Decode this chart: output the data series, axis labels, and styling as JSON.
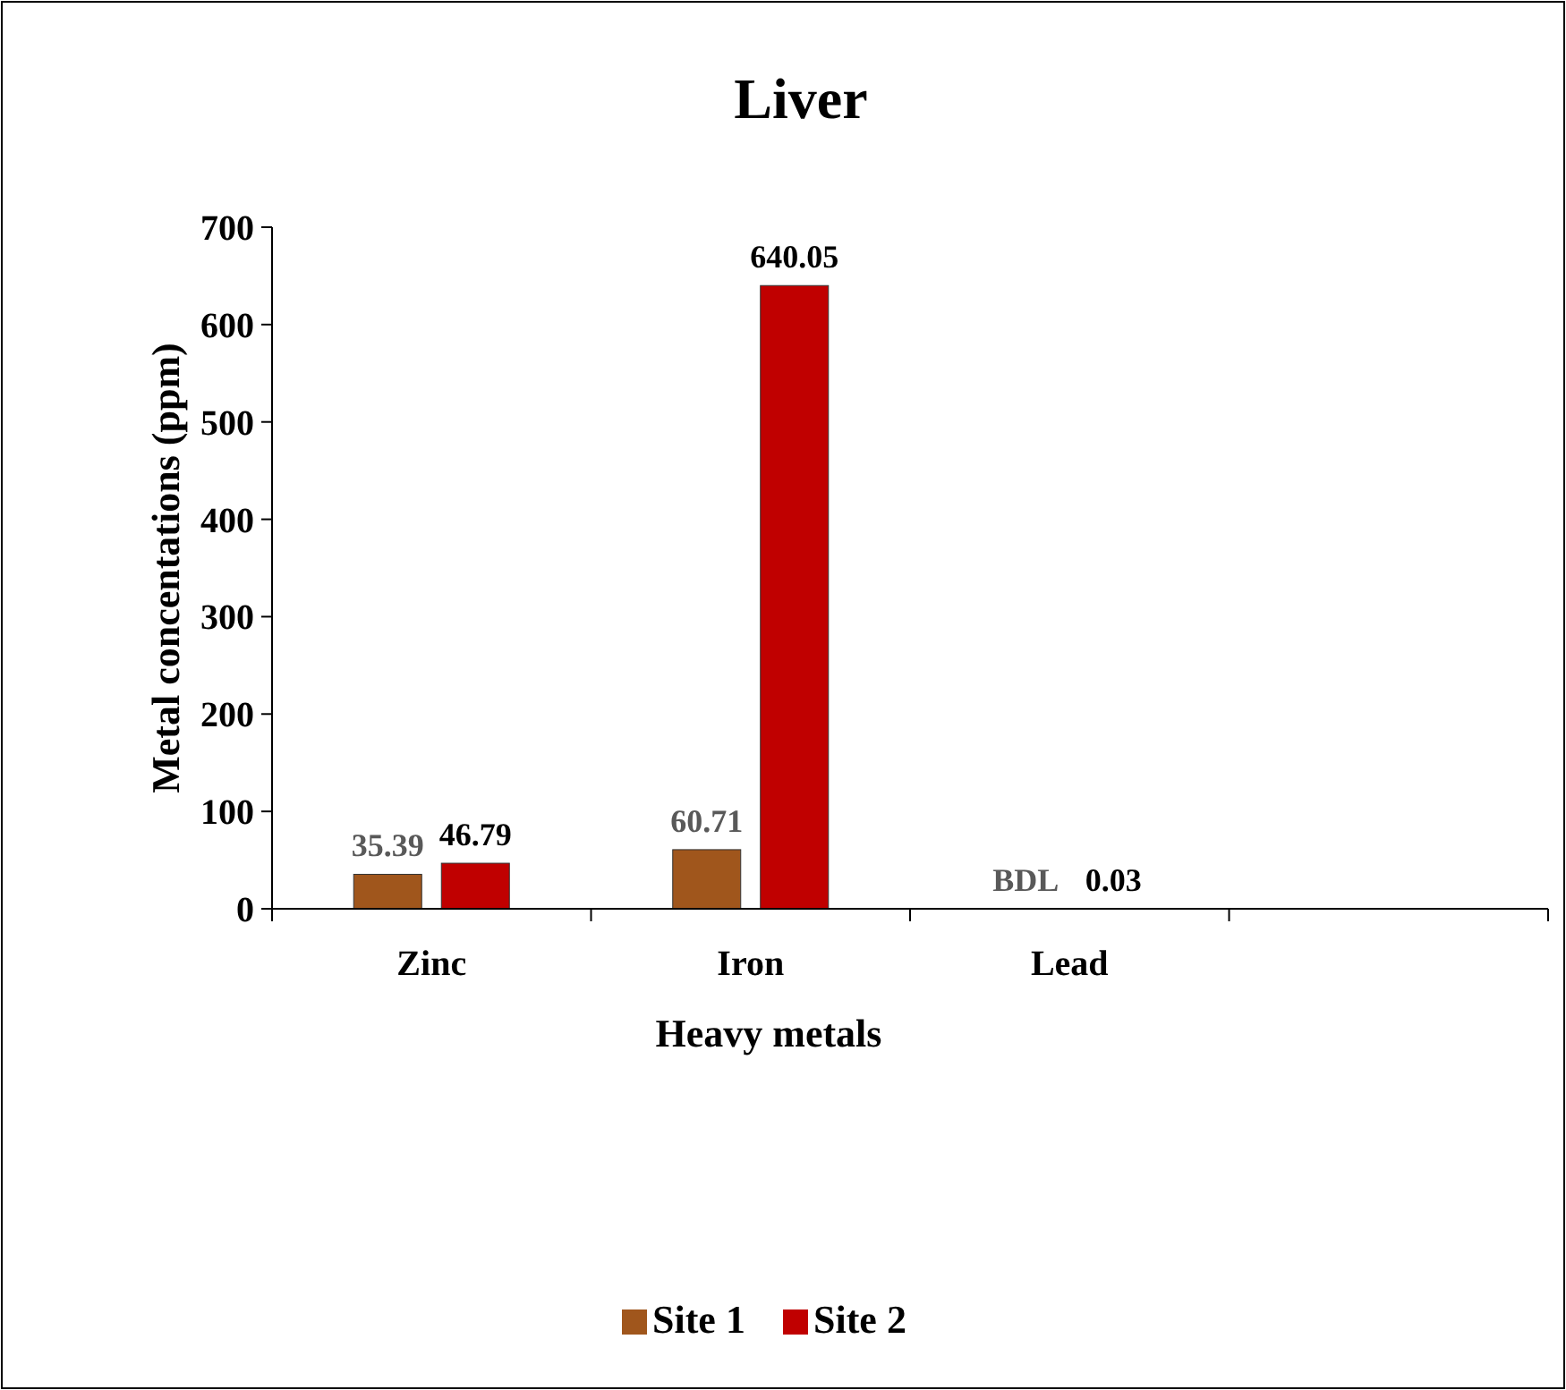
{
  "chart_data": {
    "type": "bar",
    "title": "Liver",
    "xlabel": "Heavy metals",
    "ylabel": "Metal concentations (ppm)",
    "categories": [
      "Zinc",
      "Iron",
      "Lead",
      null
    ],
    "series": [
      {
        "name": "Site 1",
        "color": "#a0561c",
        "values": [
          35.39,
          60.71,
          null,
          null
        ],
        "value_labels": [
          "35.39",
          "60.71",
          "BDL",
          null
        ]
      },
      {
        "name": "Site 2",
        "color": "#c00000",
        "values": [
          46.79,
          640.05,
          0.03,
          null
        ],
        "value_labels": [
          "46.79",
          "640.05",
          "0.03",
          null
        ]
      }
    ],
    "ylim": [
      0,
      700
    ],
    "yticks": [
      0,
      100,
      200,
      300,
      400,
      500,
      600,
      700
    ],
    "grid": false,
    "legend": "bottom"
  }
}
